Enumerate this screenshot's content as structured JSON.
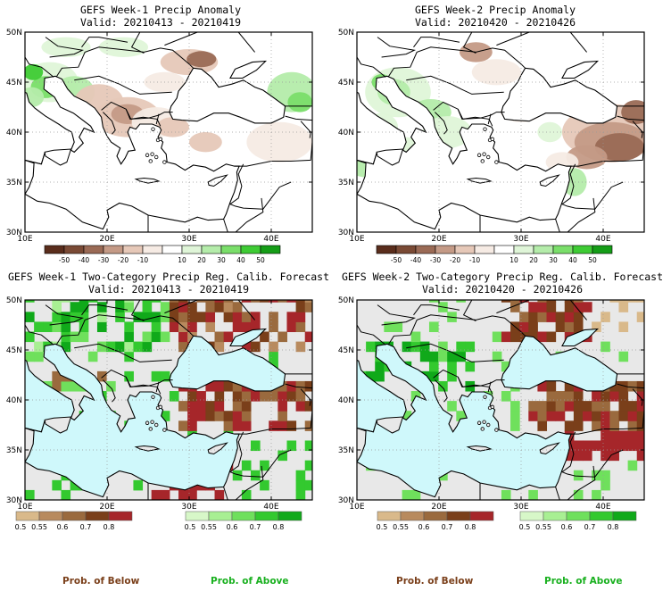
{
  "panels": [
    {
      "title": "GEFS Week-1 Precip Anomaly",
      "valid": "Valid: 20210413 - 20210419",
      "kind": "anom"
    },
    {
      "title": "GEFS Week-2 Precip Anomaly",
      "valid": "Valid: 20210420 - 20210426",
      "kind": "anom"
    },
    {
      "title": "GEFS Week-1 Two-Category Precip Reg. Calib. Forecast",
      "valid": "Valid: 20210413 - 20210419",
      "kind": "prob"
    },
    {
      "title": "GEFS Week-2 Two-Category Precip Reg. Calib. Forecast",
      "valid": "Valid: 20210420 - 20210426",
      "kind": "prob"
    }
  ],
  "lat_labels": [
    "50N",
    "45N",
    "40N",
    "35N",
    "30N"
  ],
  "lon_labels": [
    "10E",
    "20E",
    "30E",
    "40E"
  ],
  "anom_colorbar": {
    "labels": [
      "-50",
      "-40",
      "-30",
      "-20",
      "-10",
      "10",
      "20",
      "30",
      "40",
      "50"
    ],
    "colors": [
      "#5a2d1c",
      "#7a4a35",
      "#9a6a55",
      "#c49a86",
      "#e6c8b8",
      "#f6ebe4",
      "#ffffff",
      "#dff5d8",
      "#b4ecaa",
      "#7ade6a",
      "#3ecb34",
      "#159d17"
    ]
  },
  "prob_below_colorbar": {
    "labels": [
      "0.5",
      "0.55",
      "0.6",
      "0.7",
      "0.8"
    ],
    "colors": [
      "#d9b98a",
      "#b88a5e",
      "#9a6a3e",
      "#7a3f1a",
      "#a6262a"
    ]
  },
  "prob_above_colorbar": {
    "labels": [
      "0.5",
      "0.55",
      "0.6",
      "0.7",
      "0.8"
    ],
    "colors": [
      "#d7f7c8",
      "#a8ef93",
      "#6fe05c",
      "#33c92f",
      "#10a91a"
    ]
  },
  "footers": {
    "below": "Prob. of Below",
    "above": "Prob. of Above"
  },
  "colors": {
    "sea": "#cff8fb",
    "land_grey": "#e8e8e8",
    "below_text": "#7a3f1a",
    "above_text": "#19b01f"
  }
}
